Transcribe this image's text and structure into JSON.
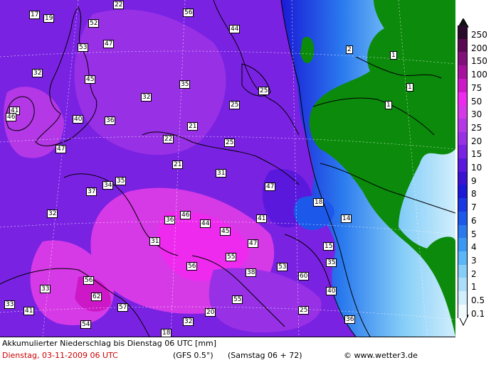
{
  "map": {
    "labels": [
      {
        "text": "17"
      },
      {
        "text": "19"
      },
      {
        "text": "22"
      },
      {
        "text": "56"
      },
      {
        "text": "52"
      },
      {
        "text": "44"
      },
      {
        "text": "53"
      },
      {
        "text": "47"
      },
      {
        "text": "2"
      },
      {
        "text": "1"
      },
      {
        "text": "32"
      },
      {
        "text": "45"
      },
      {
        "text": "35"
      },
      {
        "text": "32"
      },
      {
        "text": "25"
      },
      {
        "text": "1"
      },
      {
        "text": "1"
      },
      {
        "text": "41"
      },
      {
        "text": "46"
      },
      {
        "text": "40"
      },
      {
        "text": "36"
      },
      {
        "text": "25"
      },
      {
        "text": "21"
      },
      {
        "text": "47"
      },
      {
        "text": "22"
      },
      {
        "text": "25"
      },
      {
        "text": "21"
      },
      {
        "text": "31"
      },
      {
        "text": "35"
      },
      {
        "text": "34"
      },
      {
        "text": "37"
      },
      {
        "text": "47"
      },
      {
        "text": "18"
      },
      {
        "text": "32"
      },
      {
        "text": "46"
      },
      {
        "text": "36"
      },
      {
        "text": "44"
      },
      {
        "text": "41"
      },
      {
        "text": "14"
      },
      {
        "text": "45"
      },
      {
        "text": "31"
      },
      {
        "text": "47"
      },
      {
        "text": "15"
      },
      {
        "text": "55"
      },
      {
        "text": "56"
      },
      {
        "text": "53"
      },
      {
        "text": "35"
      },
      {
        "text": "38"
      },
      {
        "text": "60"
      },
      {
        "text": "56"
      },
      {
        "text": "33"
      },
      {
        "text": "62"
      },
      {
        "text": "40"
      },
      {
        "text": "57"
      },
      {
        "text": "55"
      },
      {
        "text": "33"
      },
      {
        "text": "41"
      },
      {
        "text": "20"
      },
      {
        "text": "25"
      },
      {
        "text": "32"
      },
      {
        "text": "36"
      },
      {
        "text": "54"
      },
      {
        "text": "18"
      }
    ]
  },
  "legend": {
    "levels": [
      {
        "label": "250",
        "color": "#2a0a2a"
      },
      {
        "label": "200",
        "color": "#5a0a52"
      },
      {
        "label": "150",
        "color": "#82107a"
      },
      {
        "label": "100",
        "color": "#a6129e"
      },
      {
        "label": "75",
        "color": "#cc18c6"
      },
      {
        "label": "50",
        "color": "#ee2aee"
      },
      {
        "label": "30",
        "color": "#d63ae6"
      },
      {
        "label": "25",
        "color": "#b438e6"
      },
      {
        "label": "20",
        "color": "#9830e6"
      },
      {
        "label": "15",
        "color": "#7a22e2"
      },
      {
        "label": "10",
        "color": "#5a18dc"
      },
      {
        "label": "9",
        "color": "#3a12d2"
      },
      {
        "label": "8",
        "color": "#1a1ad6"
      },
      {
        "label": "7",
        "color": "#1a38e2"
      },
      {
        "label": "6",
        "color": "#1c58ea"
      },
      {
        "label": "5",
        "color": "#2a7aee"
      },
      {
        "label": "4",
        "color": "#3a98f2"
      },
      {
        "label": "3",
        "color": "#5ab6f6"
      },
      {
        "label": "2",
        "color": "#86cef8"
      },
      {
        "label": "1",
        "color": "#aadefa"
      },
      {
        "label": "0.5",
        "color": "#d0eefc"
      },
      {
        "label": "0.1",
        "color": "#f0fbff"
      }
    ]
  },
  "colors": {
    "land_no_precip": "#0b8a0b",
    "sea_base": "#7a1ee8",
    "high_precip": "#e63ce6"
  },
  "footer": {
    "title": "Akkumulierter Niederschlag bis Dienstag 06 UTC [mm]",
    "date": "Dienstag, 03-11-2009  06 UTC",
    "model": "(GFS 0.5°)",
    "run": "(Samstag 06 + 72)",
    "copyright": "© www.wetter3.de"
  }
}
